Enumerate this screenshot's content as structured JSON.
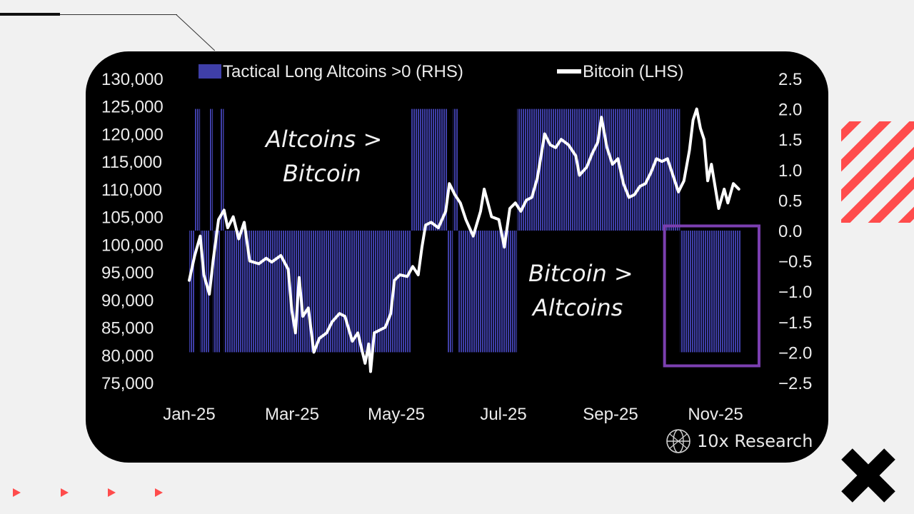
{
  "brand": {
    "name": "10x Research"
  },
  "colors": {
    "background": "#f1f1f1",
    "panel": "#000000",
    "bars": "#3f3fa8",
    "line": "#ffffff",
    "highlight_box": "#7b3fb0",
    "accent": "#ff4c4c"
  },
  "icons": {
    "brand": "globe-logo-icon",
    "close": "x-mark-icon"
  },
  "chart_data": {
    "type": "line",
    "title": "",
    "legend_position": "top",
    "legend": [
      {
        "name": "Tactical Long Altcoins >0 (RHS)",
        "style": "bar"
      },
      {
        "name": "Bitcoin (LHS)",
        "style": "line"
      }
    ],
    "left_axis": {
      "ylim": [
        75000,
        130000
      ],
      "ticks": [
        "130,000",
        "125,000",
        "120,000",
        "115,000",
        "110,000",
        "105,000",
        "100,000",
        "95,000",
        "90,000",
        "85,000",
        "80,000",
        "75,000"
      ]
    },
    "right_axis": {
      "ylim": [
        -2.5,
        2.5
      ],
      "ticks": [
        "2.5",
        "2.0",
        "1.5",
        "1.0",
        "0.5",
        "0.0",
        "-0.5",
        "-1.0",
        "-1.5",
        "-2.0",
        "-2.5"
      ]
    },
    "x_ticks": [
      "Jan-25",
      "Mar-25",
      "May-25",
      "Jul-25",
      "Sep-25",
      "Nov-25"
    ],
    "annotations": [
      {
        "lines": [
          "Altcoins >",
          "Bitcoin"
        ]
      },
      {
        "lines": [
          "Bitcoin >",
          "Altcoins"
        ]
      }
    ],
    "highlight_box": {
      "x_range": [
        "2025-09-26",
        "2025-11-08"
      ],
      "y_range": [
        -2.2,
        0.1
      ]
    },
    "series": [
      {
        "name": "Tactical Long Altcoins >0 (RHS)",
        "axis": "right",
        "type": "bar",
        "periods": [
          {
            "start": "2025-01-01",
            "end": "2025-01-03",
            "value": -2
          },
          {
            "start": "2025-01-04",
            "end": "2025-01-06",
            "value": 2
          },
          {
            "start": "2025-01-07",
            "end": "2025-01-11",
            "value": -2
          },
          {
            "start": "2025-01-12",
            "end": "2025-01-13",
            "value": 2
          },
          {
            "start": "2025-01-14",
            "end": "2025-01-17",
            "value": -2
          },
          {
            "start": "2025-01-18",
            "end": "2025-01-19",
            "value": 2
          },
          {
            "start": "2025-01-20",
            "end": "2025-05-01",
            "value": -2
          },
          {
            "start": "2025-05-02",
            "end": "2025-05-21",
            "value": 2
          },
          {
            "start": "2025-05-22",
            "end": "2025-05-24",
            "value": -2
          },
          {
            "start": "2025-05-25",
            "end": "2025-05-27",
            "value": 2
          },
          {
            "start": "2025-05-28",
            "end": "2025-06-28",
            "value": -2
          },
          {
            "start": "2025-06-29",
            "end": "2025-09-25",
            "value": 2
          },
          {
            "start": "2025-09-26",
            "end": "2025-10-28",
            "value": -2
          }
        ]
      },
      {
        "name": "Bitcoin (LHS)",
        "axis": "left",
        "type": "line",
        "points": [
          [
            "2025-01-01",
            93500
          ],
          [
            "2025-01-04",
            98000
          ],
          [
            "2025-01-07",
            101500
          ],
          [
            "2025-01-09",
            94500
          ],
          [
            "2025-01-12",
            91000
          ],
          [
            "2025-01-14",
            97000
          ],
          [
            "2025-01-17",
            104500
          ],
          [
            "2025-01-20",
            106200
          ],
          [
            "2025-01-22",
            103000
          ],
          [
            "2025-01-25",
            105000
          ],
          [
            "2025-01-28",
            101000
          ],
          [
            "2025-01-31",
            104000
          ],
          [
            "2025-02-03",
            97000
          ],
          [
            "2025-02-08",
            96500
          ],
          [
            "2025-02-12",
            97500
          ],
          [
            "2025-02-15",
            96800
          ],
          [
            "2025-02-20",
            98000
          ],
          [
            "2025-02-24",
            95500
          ],
          [
            "2025-02-26",
            88000
          ],
          [
            "2025-02-28",
            84000
          ],
          [
            "2025-03-02",
            94000
          ],
          [
            "2025-03-04",
            87000
          ],
          [
            "2025-03-07",
            88500
          ],
          [
            "2025-03-10",
            80500
          ],
          [
            "2025-03-13",
            83000
          ],
          [
            "2025-03-17",
            84000
          ],
          [
            "2025-03-20",
            86000
          ],
          [
            "2025-03-24",
            87500
          ],
          [
            "2025-03-27",
            87000
          ],
          [
            "2025-03-31",
            82500
          ],
          [
            "2025-04-03",
            84000
          ],
          [
            "2025-04-07",
            78500
          ],
          [
            "2025-04-09",
            82000
          ],
          [
            "2025-04-10",
            77000
          ],
          [
            "2025-04-12",
            84000
          ],
          [
            "2025-04-15",
            84500
          ],
          [
            "2025-04-18",
            85000
          ],
          [
            "2025-04-21",
            87500
          ],
          [
            "2025-04-23",
            93500
          ],
          [
            "2025-04-26",
            94500
          ],
          [
            "2025-04-30",
            94200
          ],
          [
            "2025-05-03",
            96000
          ],
          [
            "2025-05-06",
            94500
          ],
          [
            "2025-05-08",
            99500
          ],
          [
            "2025-05-10",
            103500
          ],
          [
            "2025-05-13",
            104000
          ],
          [
            "2025-05-17",
            103000
          ],
          [
            "2025-05-21",
            106000
          ],
          [
            "2025-05-23",
            111000
          ],
          [
            "2025-05-26",
            109000
          ],
          [
            "2025-05-29",
            107500
          ],
          [
            "2025-06-01",
            104500
          ],
          [
            "2025-06-05",
            101500
          ],
          [
            "2025-06-09",
            106000
          ],
          [
            "2025-06-11",
            110000
          ],
          [
            "2025-06-15",
            105000
          ],
          [
            "2025-06-19",
            104500
          ],
          [
            "2025-06-22",
            99500
          ],
          [
            "2025-06-25",
            106500
          ],
          [
            "2025-06-28",
            107500
          ],
          [
            "2025-07-01",
            106000
          ],
          [
            "2025-07-04",
            108000
          ],
          [
            "2025-07-07",
            108500
          ],
          [
            "2025-07-10",
            112000
          ],
          [
            "2025-07-14",
            120000
          ],
          [
            "2025-07-17",
            118000
          ],
          [
            "2025-07-20",
            117500
          ],
          [
            "2025-07-23",
            119000
          ],
          [
            "2025-07-27",
            118000
          ],
          [
            "2025-07-31",
            116000
          ],
          [
            "2025-08-02",
            112500
          ],
          [
            "2025-08-06",
            114000
          ],
          [
            "2025-08-09",
            116500
          ],
          [
            "2025-08-12",
            118500
          ],
          [
            "2025-08-14",
            123000
          ],
          [
            "2025-08-17",
            117500
          ],
          [
            "2025-08-20",
            114500
          ],
          [
            "2025-08-23",
            115500
          ],
          [
            "2025-08-26",
            111000
          ],
          [
            "2025-08-29",
            108500
          ],
          [
            "2025-09-01",
            109000
          ],
          [
            "2025-09-04",
            110500
          ],
          [
            "2025-09-07",
            111000
          ],
          [
            "2025-09-10",
            113000
          ],
          [
            "2025-09-13",
            115500
          ],
          [
            "2025-09-16",
            115000
          ],
          [
            "2025-09-19",
            115500
          ],
          [
            "2025-09-22",
            112500
          ],
          [
            "2025-09-25",
            109500
          ],
          [
            "2025-09-28",
            111500
          ],
          [
            "2025-10-01",
            117000
          ],
          [
            "2025-10-03",
            122500
          ],
          [
            "2025-10-05",
            124500
          ],
          [
            "2025-10-07",
            121000
          ],
          [
            "2025-10-09",
            119000
          ],
          [
            "2025-10-11",
            111500
          ],
          [
            "2025-10-13",
            114500
          ],
          [
            "2025-10-15",
            110500
          ],
          [
            "2025-10-17",
            106500
          ],
          [
            "2025-10-20",
            110000
          ],
          [
            "2025-10-22",
            107500
          ],
          [
            "2025-10-25",
            111000
          ],
          [
            "2025-10-28",
            110000
          ]
        ]
      }
    ]
  }
}
